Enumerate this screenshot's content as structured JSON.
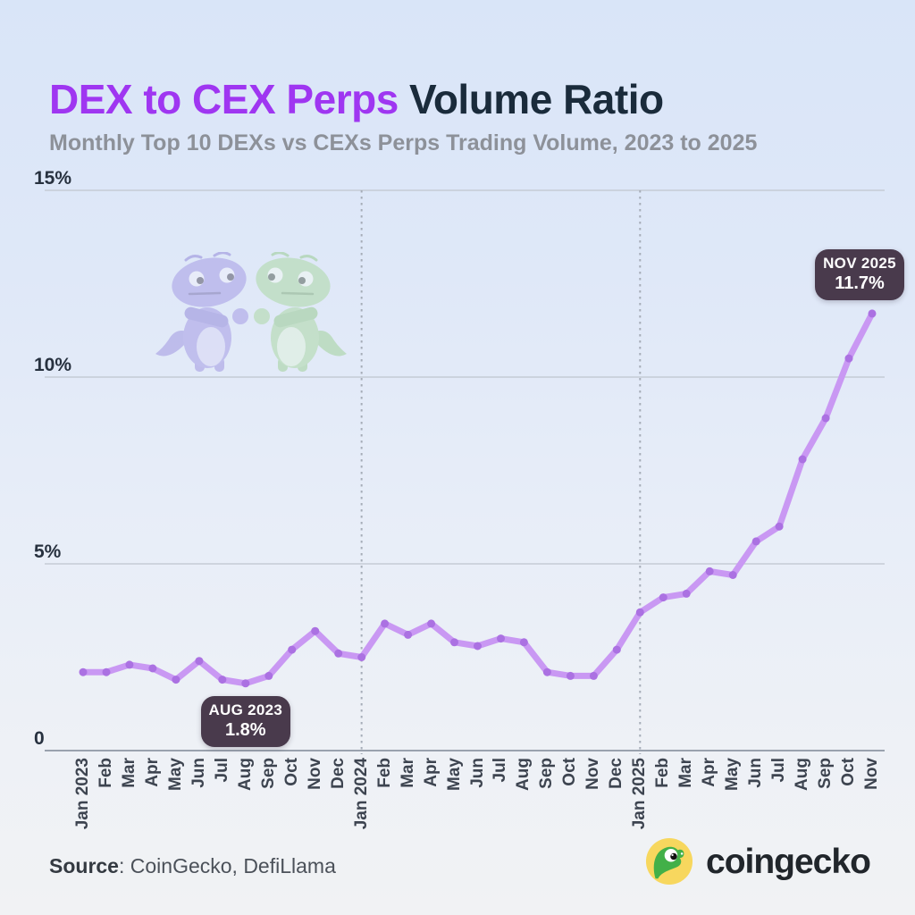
{
  "header": {
    "title_accent": "DEX to CEX Perps",
    "title_rest": " Volume Ratio",
    "subtitle": "Monthly Top 10 DEXs vs CEXs Perps Trading Volume, 2023 to 2025"
  },
  "footer": {
    "source_label": "Source",
    "source_rest": ": CoinGecko, DefiLlama",
    "brand": "coingecko"
  },
  "colors": {
    "title_accent": "#9f36f1",
    "title_dark": "#1a2b3b",
    "subtitle_gray": "#8d9199",
    "line": "#c998f3",
    "marker": "#ab71e2",
    "grid": "#c5cbd6",
    "axis_baseline": "#9aa2ae",
    "divider_dotted": "#a6adb8",
    "annotation_bg": "#493a4c",
    "annotation_text": "#ffffff",
    "watermark_purple": "#a095e4",
    "watermark_green": "#a8d79e",
    "logo_yellow": "#f7d75e",
    "logo_green": "#42b048"
  },
  "chart_data": {
    "type": "line",
    "title": "DEX to CEX Perps Volume Ratio",
    "subtitle": "Monthly Top 10 DEXs vs CEXs Perps Trading Volume, 2023 to 2025",
    "x": [
      "Jan 2023",
      "Feb",
      "Mar",
      "Apr",
      "May",
      "Jun",
      "Jul",
      "Aug",
      "Sep",
      "Oct",
      "Nov",
      "Dec",
      "Jan 2024",
      "Feb",
      "Mar",
      "Apr",
      "May",
      "Jun",
      "Jul",
      "Aug",
      "Sep",
      "Oct",
      "Nov",
      "Dec",
      "Jan 2025",
      "Feb",
      "Mar",
      "Apr",
      "May",
      "Jun",
      "Jul",
      "Aug",
      "Sep",
      "Oct",
      "Nov"
    ],
    "series": [
      {
        "name": "DEX to CEX perps volume ratio (%)",
        "values": [
          2.1,
          2.1,
          2.3,
          2.2,
          1.9,
          2.4,
          1.9,
          1.8,
          2.0,
          2.7,
          3.2,
          2.6,
          2.5,
          3.4,
          3.1,
          3.4,
          2.9,
          2.8,
          3.0,
          2.9,
          2.1,
          2.0,
          2.0,
          2.7,
          3.7,
          4.1,
          4.2,
          4.8,
          4.7,
          5.6,
          6.0,
          7.8,
          8.9,
          10.5,
          11.7
        ]
      }
    ],
    "ylim": [
      0,
      15
    ],
    "y_ticks": [
      {
        "label": "0",
        "value": 0
      },
      {
        "label": "5%",
        "value": 5
      },
      {
        "label": "10%",
        "value": 10
      },
      {
        "label": "15%",
        "value": 15
      }
    ],
    "grid": "horizontal",
    "legend": "none",
    "year_divider_indices": [
      12,
      24
    ],
    "annotations": [
      {
        "index": 7,
        "month": "Aug 2023",
        "label": "AUG 2023",
        "value_label": "1.8%",
        "placement": "below"
      },
      {
        "index": 34,
        "month": "Nov 2025",
        "label": "NOV 2025",
        "value_label": "11.7%",
        "placement": "above"
      }
    ]
  }
}
